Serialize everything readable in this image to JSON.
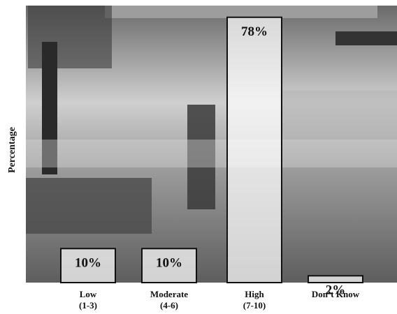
{
  "chart_data": {
    "type": "bar",
    "y_label": "Percentage",
    "categories": [
      "Low\n(1-3)",
      "Moderate\n(4-6)",
      "High\n(7-10)",
      "Don’t Know"
    ],
    "values": [
      10,
      10,
      78,
      2
    ],
    "value_labels": [
      "10%",
      "10%",
      "78%",
      "2%"
    ],
    "ylim": [
      0,
      80
    ]
  }
}
